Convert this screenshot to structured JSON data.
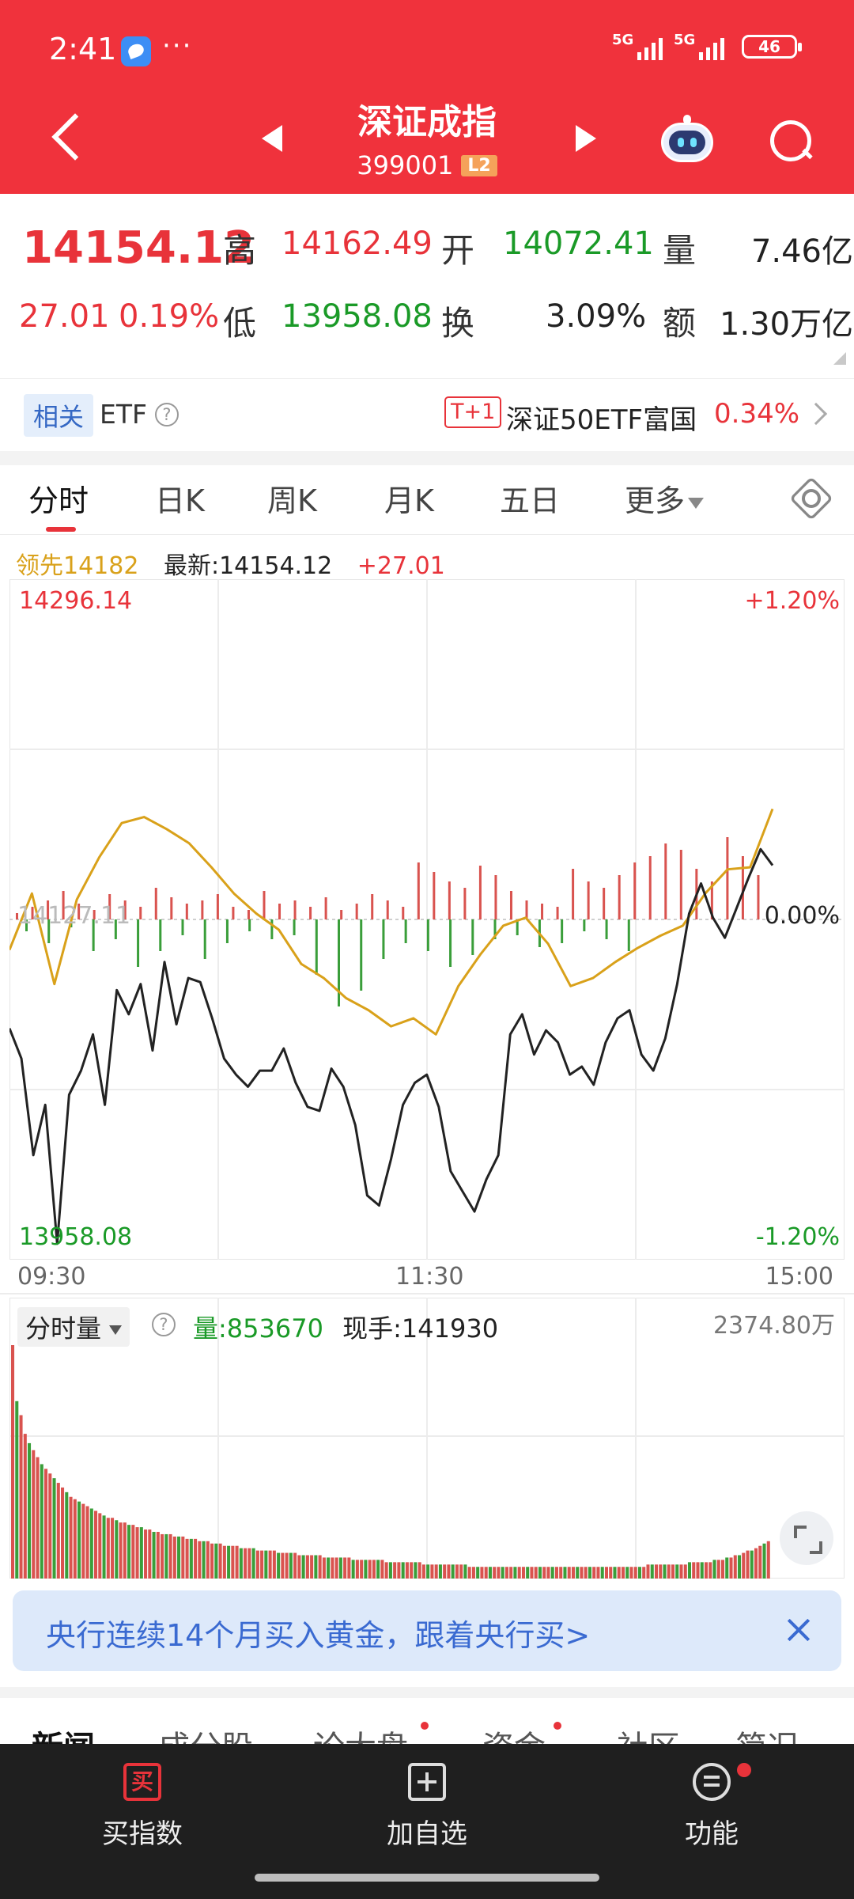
{
  "status": {
    "time": "2:41",
    "more": "···",
    "net1": "5G",
    "net2": "5G",
    "battery": "46"
  },
  "header": {
    "title": "深证成指",
    "code": "399001",
    "level": "L2"
  },
  "quote": {
    "price": "14154.12",
    "change": "27.01",
    "change_pct": "0.19%",
    "high_label": "高",
    "high": "14162.49",
    "low_label": "低",
    "low": "13958.08",
    "open_label": "开",
    "open": "14072.41",
    "turnover_label": "换",
    "turnover": "3.09%",
    "volume_label": "量",
    "volume": "7.46亿",
    "amount_label": "额",
    "amount": "1.30万亿"
  },
  "etf": {
    "tag": "相关",
    "label": "ETF",
    "help": "?",
    "badge": "T+1",
    "name": "深证50ETF富国",
    "pct": "0.34%"
  },
  "tabs": [
    {
      "label": "分时"
    },
    {
      "label": "日K"
    },
    {
      "label": "周K"
    },
    {
      "label": "月K"
    },
    {
      "label": "五日"
    },
    {
      "label": "更多"
    }
  ],
  "info": {
    "lead": "领先14182",
    "latest": "最新:14154.12",
    "change": "+27.01"
  },
  "chart_data": [
    {
      "type": "line",
      "x_labels": [
        "09:30",
        "11:30",
        "15:00"
      ],
      "y_max_label": "14296.14",
      "y_min_label": "13958.08",
      "y_ref_label": "14127.11",
      "pct_max_label": "+1.20%",
      "pct_zero_label": "0.00%",
      "pct_min_label": "-1.20%",
      "ylim": [
        13958.08,
        14296.14
      ],
      "reference": 14127.11,
      "series": [
        {
          "role": "price",
          "color": "#222222",
          "values": [
            14073,
            14058,
            14010,
            14035,
            13966,
            14040,
            14052,
            14070,
            14035,
            14092,
            14080,
            14095,
            14062,
            14106,
            14075,
            14098,
            14096,
            14078,
            14058,
            14050,
            14044,
            14052,
            14052,
            14063,
            14046,
            14034,
            14032,
            14053,
            14044,
            14025,
            13990,
            13985,
            14008,
            14035,
            14046,
            14050,
            14034,
            14002,
            13992,
            13982,
            13998,
            14010,
            14070,
            14080,
            14060,
            14072,
            14066,
            14050,
            14054,
            14045,
            14066,
            14078,
            14082,
            14060,
            14052,
            14068,
            14095,
            14130,
            14145,
            14128,
            14118,
            14133,
            14148,
            14162,
            14154
          ]
        },
        {
          "role": "lead",
          "color": "#d9a11a",
          "values": [
            14112,
            14140,
            14095,
            14137,
            14158,
            14175,
            14178,
            14172,
            14165,
            14153,
            14140,
            14130,
            14122,
            14105,
            14098,
            14088,
            14082,
            14074,
            14078,
            14070,
            14094,
            14110,
            14124,
            14128,
            14115,
            14094,
            14098,
            14106,
            14113,
            14119,
            14124,
            14140,
            14152,
            14153,
            14182
          ]
        },
        {
          "role": "imbalance_up",
          "color": "#d9534f",
          "values": [
            2,
            4,
            6,
            9,
            5,
            3,
            8,
            6,
            4,
            10,
            7,
            5,
            6,
            8,
            4,
            3,
            9,
            5,
            6,
            4,
            7,
            3,
            5,
            8,
            6,
            4,
            18,
            15,
            12,
            10,
            17,
            14,
            9,
            6,
            5,
            4,
            16,
            12,
            10,
            14,
            18,
            20,
            24,
            22,
            16,
            12,
            26,
            20,
            14
          ]
        },
        {
          "role": "imbalance_down",
          "color": "#3a9e3a",
          "values": [
            3,
            6,
            2,
            8,
            5,
            12,
            8,
            4,
            10,
            6,
            3,
            5,
            4,
            14,
            22,
            18,
            10,
            6,
            8,
            12,
            9,
            5,
            4,
            7,
            6,
            3,
            5,
            8
          ]
        }
      ]
    },
    {
      "type": "bar",
      "max_label": "2374.80万",
      "values": [
        100,
        76,
        70,
        62,
        58,
        55,
        52,
        49,
        47,
        45,
        43,
        41,
        39,
        37,
        35,
        34,
        33,
        32,
        31,
        30,
        29,
        28,
        27,
        26,
        26,
        25,
        24,
        24,
        23,
        23,
        22,
        22,
        21,
        21,
        20,
        20,
        19,
        19,
        19,
        18,
        18,
        18,
        17,
        17,
        17,
        16,
        16,
        16,
        15,
        15,
        15,
        14,
        14,
        14,
        14,
        13,
        13,
        13,
        13,
        12,
        12,
        12,
        12,
        12,
        11,
        11,
        11,
        11,
        11,
        10,
        10,
        10,
        10,
        10,
        10,
        9,
        9,
        9,
        9,
        9,
        9,
        9,
        8,
        8,
        8,
        8,
        8,
        8,
        8,
        8,
        7,
        7,
        7,
        7,
        7,
        7,
        7,
        7,
        7,
        6,
        6,
        6,
        6,
        6,
        6,
        6,
        6,
        6,
        6,
        6,
        5,
        5,
        5,
        5,
        5,
        5,
        5,
        5,
        5,
        5,
        5,
        5,
        5,
        5,
        5,
        5,
        5,
        5,
        5,
        5,
        5,
        5,
        5,
        5,
        5,
        5,
        5,
        5,
        5,
        5,
        5,
        5,
        5,
        5,
        5,
        5,
        5,
        5,
        5,
        5,
        5,
        5,
        5,
        6,
        6,
        6,
        6,
        6,
        6,
        6,
        6,
        6,
        6,
        7,
        7,
        7,
        7,
        7,
        7,
        8,
        8,
        8,
        9,
        9,
        10,
        10,
        11,
        12,
        12,
        13,
        14,
        15,
        16
      ]
    }
  ],
  "volume": {
    "selector": "分时量",
    "help": "?",
    "vol": "量:853670",
    "hand": "现手:141930"
  },
  "banner": {
    "text": "央行连续14个月买入黄金，跟着央行买>"
  },
  "news_tabs": [
    "新闻",
    "成分股",
    "论大盘",
    "资金",
    "社区",
    "简况"
  ],
  "bottom": {
    "buy_icon": "买",
    "buy": "买指数",
    "add": "加自选",
    "func": "功能"
  }
}
